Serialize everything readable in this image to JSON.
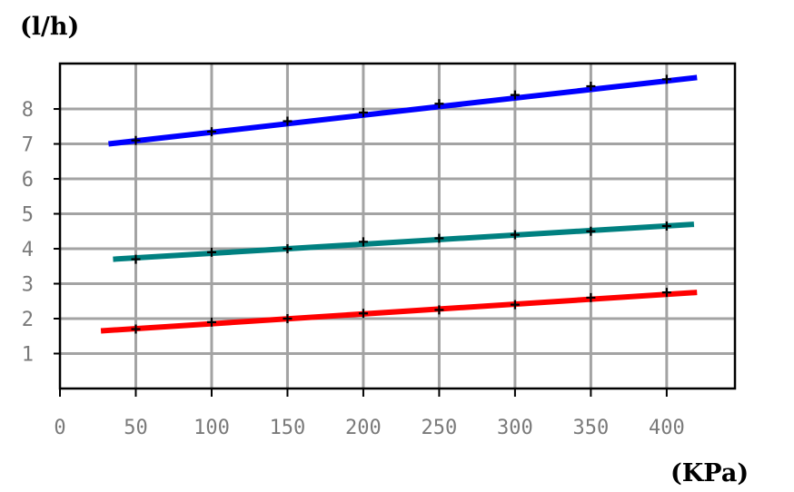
{
  "chart_data": {
    "type": "line",
    "xlabel": "",
    "ylabel": "",
    "x_unit": "(KPa)",
    "y_unit": "(l/h)",
    "xlim": [
      0,
      445
    ],
    "ylim": [
      0,
      9.3
    ],
    "xticks": [
      "0",
      "50",
      "100",
      "150",
      "200",
      "250",
      "300",
      "350",
      "400"
    ],
    "xtick_values": [
      0,
      50,
      100,
      150,
      200,
      250,
      300,
      350,
      400
    ],
    "yticks": [
      "1",
      "2",
      "3",
      "4",
      "5",
      "6",
      "7",
      "8"
    ],
    "ytick_values": [
      1,
      2,
      3,
      4,
      5,
      6,
      7,
      8
    ],
    "grid": true,
    "legend": "none",
    "series": [
      {
        "color": "#0000ff",
        "line_x": [
          32,
          420
        ],
        "line_y": [
          7.0,
          8.9
        ],
        "markers_x": [
          50,
          100,
          150,
          200,
          250,
          300,
          350,
          400
        ],
        "markers_y": [
          7.1,
          7.35,
          7.65,
          7.9,
          8.15,
          8.4,
          8.65,
          8.85
        ]
      },
      {
        "color": "#008080",
        "line_x": [
          35,
          418
        ],
        "line_y": [
          3.7,
          4.7
        ],
        "markers_x": [
          50,
          100,
          150,
          200,
          250,
          300,
          350,
          400
        ],
        "markers_y": [
          3.7,
          3.9,
          4.0,
          4.2,
          4.3,
          4.4,
          4.5,
          4.65
        ]
      },
      {
        "color": "#ff0000",
        "line_x": [
          27,
          420
        ],
        "line_y": [
          1.65,
          2.75
        ],
        "markers_x": [
          50,
          100,
          150,
          200,
          250,
          300,
          350,
          400
        ],
        "markers_y": [
          1.7,
          1.9,
          2.0,
          2.15,
          2.25,
          2.4,
          2.6,
          2.75
        ]
      }
    ]
  }
}
